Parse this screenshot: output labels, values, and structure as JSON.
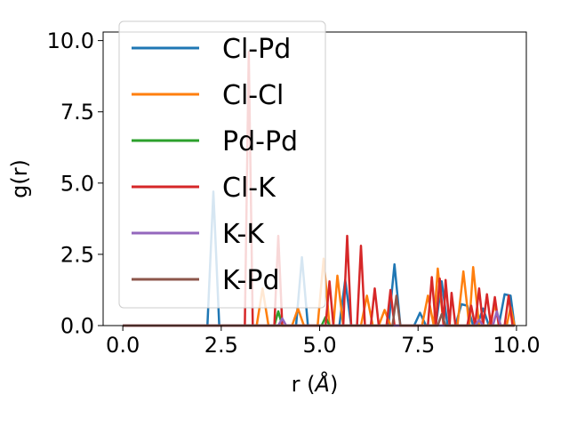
{
  "chart_data": {
    "type": "line",
    "title": "",
    "xlabel": "r (",
    "xlabel_symbol": "Å",
    "xlabel_close": ")",
    "ylabel": "g(r)",
    "xlim": [
      -0.5,
      10.25
    ],
    "ylim": [
      0,
      10.3
    ],
    "xticks": [
      0.0,
      2.5,
      5.0,
      7.5,
      10.0
    ],
    "xtick_labels": [
      "0.0",
      "2.5",
      "5.0",
      "7.5",
      "10.0"
    ],
    "yticks": [
      0.0,
      2.5,
      5.0,
      7.5,
      10.0
    ],
    "ytick_labels": [
      "0.0",
      "2.5",
      "5.0",
      "7.5",
      "10.0"
    ],
    "grid": false,
    "legend_position": "upper-left",
    "series": [
      {
        "name": "Cl-Pd",
        "color": "#1f77b4",
        "points": [
          [
            0.0,
            0
          ],
          [
            2.15,
            0
          ],
          [
            2.3,
            4.7
          ],
          [
            2.45,
            0
          ],
          [
            4.4,
            0
          ],
          [
            4.55,
            2.4
          ],
          [
            4.7,
            0
          ],
          [
            5.5,
            0
          ],
          [
            5.65,
            1.6
          ],
          [
            5.8,
            0
          ],
          [
            6.75,
            0
          ],
          [
            6.9,
            2.15
          ],
          [
            7.05,
            0
          ],
          [
            7.4,
            0
          ],
          [
            7.55,
            0.45
          ],
          [
            7.7,
            0
          ],
          [
            7.95,
            0
          ],
          [
            8.1,
            1.55
          ],
          [
            8.25,
            0
          ],
          [
            8.45,
            0
          ],
          [
            8.6,
            0.75
          ],
          [
            8.75,
            0.7
          ],
          [
            8.9,
            0
          ],
          [
            9.0,
            0
          ],
          [
            9.15,
            0.6
          ],
          [
            9.3,
            0
          ],
          [
            9.55,
            0
          ],
          [
            9.7,
            1.1
          ],
          [
            9.85,
            1.05
          ],
          [
            9.95,
            0
          ]
        ]
      },
      {
        "name": "Cl-Cl",
        "color": "#ff7f0e",
        "points": [
          [
            0.0,
            0
          ],
          [
            3.4,
            0
          ],
          [
            3.55,
            1.3
          ],
          [
            3.7,
            0
          ],
          [
            4.3,
            0
          ],
          [
            4.45,
            0.6
          ],
          [
            4.6,
            0
          ],
          [
            4.95,
            0
          ],
          [
            5.1,
            2.35
          ],
          [
            5.25,
            0
          ],
          [
            5.35,
            0
          ],
          [
            5.45,
            1.75
          ],
          [
            5.6,
            0
          ],
          [
            6.05,
            0
          ],
          [
            6.2,
            1.05
          ],
          [
            6.35,
            0
          ],
          [
            6.5,
            0
          ],
          [
            6.65,
            0.55
          ],
          [
            6.8,
            0
          ],
          [
            7.6,
            0
          ],
          [
            7.75,
            1.05
          ],
          [
            7.9,
            0
          ],
          [
            8.0,
            2.0
          ],
          [
            8.15,
            0
          ],
          [
            8.5,
            0
          ],
          [
            8.65,
            1.9
          ],
          [
            8.8,
            0
          ],
          [
            8.9,
            2.05
          ],
          [
            9.05,
            0
          ],
          [
            9.3,
            0
          ],
          [
            9.45,
            0.7
          ],
          [
            9.6,
            0
          ],
          [
            9.75,
            0
          ],
          [
            9.85,
            0.65
          ],
          [
            9.95,
            0
          ]
        ]
      },
      {
        "name": "Pd-Pd",
        "color": "#2ca02c",
        "points": [
          [
            0.0,
            0
          ],
          [
            3.85,
            0
          ],
          [
            3.95,
            0.5
          ],
          [
            4.05,
            0
          ],
          [
            5.05,
            0
          ],
          [
            5.15,
            0.3
          ],
          [
            5.25,
            0
          ],
          [
            9.95,
            0
          ]
        ]
      },
      {
        "name": "Cl-K",
        "color": "#d62728",
        "points": [
          [
            0.0,
            0
          ],
          [
            3.1,
            0
          ],
          [
            3.2,
            9.6
          ],
          [
            3.3,
            0
          ],
          [
            3.85,
            0
          ],
          [
            3.95,
            3.15
          ],
          [
            4.05,
            0
          ],
          [
            5.15,
            0
          ],
          [
            5.25,
            1.55
          ],
          [
            5.35,
            0
          ],
          [
            5.6,
            0
          ],
          [
            5.7,
            3.15
          ],
          [
            5.8,
            0
          ],
          [
            5.95,
            0
          ],
          [
            6.05,
            2.8
          ],
          [
            6.15,
            0
          ],
          [
            6.3,
            0
          ],
          [
            6.4,
            1.3
          ],
          [
            6.5,
            0
          ],
          [
            6.7,
            0
          ],
          [
            6.8,
            1.25
          ],
          [
            6.9,
            0
          ],
          [
            7.75,
            0
          ],
          [
            7.85,
            1.7
          ],
          [
            7.95,
            0
          ],
          [
            8.05,
            1.65
          ],
          [
            8.15,
            0
          ],
          [
            8.2,
            1.6
          ],
          [
            8.3,
            0
          ],
          [
            8.35,
            1.15
          ],
          [
            8.45,
            0
          ],
          [
            8.75,
            0
          ],
          [
            8.85,
            0.7
          ],
          [
            8.95,
            0
          ],
          [
            9.05,
            1.3
          ],
          [
            9.15,
            0
          ],
          [
            9.25,
            1.1
          ],
          [
            9.35,
            0
          ],
          [
            9.45,
            1.0
          ],
          [
            9.55,
            0
          ],
          [
            9.7,
            0
          ],
          [
            9.8,
            1.05
          ],
          [
            9.9,
            0
          ],
          [
            9.95,
            0
          ]
        ]
      },
      {
        "name": "K-K",
        "color": "#9467bd",
        "points": [
          [
            0.0,
            0
          ],
          [
            3.95,
            0
          ],
          [
            4.05,
            0.25
          ],
          [
            4.15,
            0
          ],
          [
            8.95,
            0
          ],
          [
            9.05,
            0.2
          ],
          [
            9.15,
            0
          ],
          [
            9.4,
            0
          ],
          [
            9.5,
            0.5
          ],
          [
            9.6,
            0
          ],
          [
            9.95,
            0
          ]
        ]
      },
      {
        "name": "K-Pd",
        "color": "#8c564b",
        "points": [
          [
            0.0,
            0
          ],
          [
            6.85,
            0
          ],
          [
            6.95,
            1.05
          ],
          [
            7.05,
            0
          ],
          [
            8.0,
            0
          ],
          [
            8.1,
            0.4
          ],
          [
            8.2,
            0
          ],
          [
            9.95,
            0
          ]
        ]
      }
    ]
  }
}
